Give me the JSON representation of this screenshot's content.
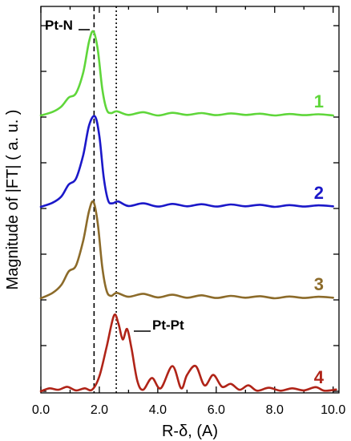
{
  "chart_data": {
    "type": "line",
    "xlabel": "R-δ, (A)",
    "ylabel": "Magnitude of |FT| ( a. u. )",
    "xlim": [
      0.0,
      10.2
    ],
    "x_ticks": [
      "0.0",
      "2.0",
      "4.0",
      "6.0",
      "8.0",
      "10.0"
    ],
    "y_ticks_labeled": false,
    "grid": false,
    "reference_lines": [
      {
        "x": 1.82,
        "style": "dashed",
        "label": "Pt-N"
      },
      {
        "x": 2.58,
        "style": "dotted",
        "label": "Pt-Pt"
      }
    ],
    "series": [
      {
        "name": "1",
        "color": "#5fd63a",
        "x": [
          0.0,
          0.4,
          0.7,
          0.95,
          1.2,
          1.45,
          1.65,
          1.8,
          1.95,
          2.1,
          2.25,
          2.4,
          2.6,
          3.0,
          3.5,
          4.0,
          4.5,
          5.0,
          5.5,
          6.0,
          6.5,
          7.0,
          7.5,
          8.0,
          8.5,
          9.0,
          9.5,
          10.0
        ],
        "y": [
          0.0,
          0.12,
          0.3,
          0.6,
          0.75,
          1.45,
          2.5,
          2.83,
          2.2,
          0.9,
          0.2,
          0.08,
          0.14,
          0.02,
          0.11,
          0.0,
          0.09,
          0.02,
          0.08,
          0.01,
          0.07,
          0.02,
          0.06,
          0.0,
          0.05,
          0.01,
          0.04,
          0.0
        ]
      },
      {
        "name": "2",
        "color": "#1b18c9",
        "x": [
          0.0,
          0.4,
          0.7,
          0.95,
          1.2,
          1.45,
          1.65,
          1.85,
          2.0,
          2.15,
          2.3,
          2.45,
          2.65,
          3.0,
          3.5,
          4.0,
          4.5,
          5.0,
          5.5,
          6.0,
          6.5,
          7.0,
          7.5,
          8.0,
          8.5,
          9.0,
          9.5,
          10.0
        ],
        "y": [
          0.0,
          0.14,
          0.35,
          0.75,
          0.95,
          1.75,
          2.75,
          3.05,
          2.4,
          1.0,
          0.22,
          0.12,
          0.18,
          0.03,
          0.12,
          0.01,
          0.1,
          0.02,
          0.09,
          0.01,
          0.08,
          0.02,
          0.07,
          0.0,
          0.06,
          0.01,
          0.05,
          0.02
        ]
      },
      {
        "name": "3",
        "color": "#8c6b2a",
        "x": [
          0.0,
          0.4,
          0.7,
          0.95,
          1.2,
          1.45,
          1.65,
          1.8,
          1.95,
          2.1,
          2.25,
          2.4,
          2.6,
          3.0,
          3.5,
          4.0,
          4.5,
          5.0,
          5.5,
          6.0,
          6.5,
          7.0,
          7.5,
          8.0,
          8.5,
          9.0,
          9.5,
          10.0
        ],
        "y": [
          0.0,
          0.18,
          0.45,
          0.9,
          1.1,
          1.95,
          2.95,
          3.25,
          2.5,
          1.05,
          0.25,
          0.08,
          0.18,
          0.05,
          0.15,
          0.03,
          0.12,
          0.02,
          0.1,
          0.01,
          0.08,
          0.02,
          0.07,
          0.0,
          0.06,
          0.01,
          0.05,
          0.02
        ]
      },
      {
        "name": "4",
        "color": "#b02418",
        "x": [
          0.0,
          0.3,
          0.6,
          0.9,
          1.2,
          1.5,
          1.75,
          2.0,
          2.25,
          2.5,
          2.65,
          2.8,
          2.95,
          3.1,
          3.3,
          3.5,
          3.8,
          4.1,
          4.5,
          4.8,
          5.0,
          5.3,
          5.6,
          5.9,
          6.2,
          6.5,
          6.8,
          7.1,
          7.4,
          7.8,
          8.2,
          8.6,
          9.0,
          9.4,
          9.7,
          10.1
        ],
        "y": [
          0.0,
          0.1,
          0.05,
          0.15,
          0.03,
          0.1,
          0.05,
          0.5,
          1.5,
          2.55,
          2.3,
          1.75,
          2.1,
          1.45,
          0.35,
          0.05,
          0.45,
          0.1,
          0.85,
          0.1,
          0.55,
          0.85,
          0.2,
          0.55,
          0.15,
          0.25,
          0.05,
          0.2,
          0.02,
          0.12,
          0.02,
          0.1,
          0.03,
          0.14,
          0.02,
          0.06
        ]
      }
    ],
    "annotations": [
      "Pt-N",
      "Pt-Pt"
    ]
  }
}
